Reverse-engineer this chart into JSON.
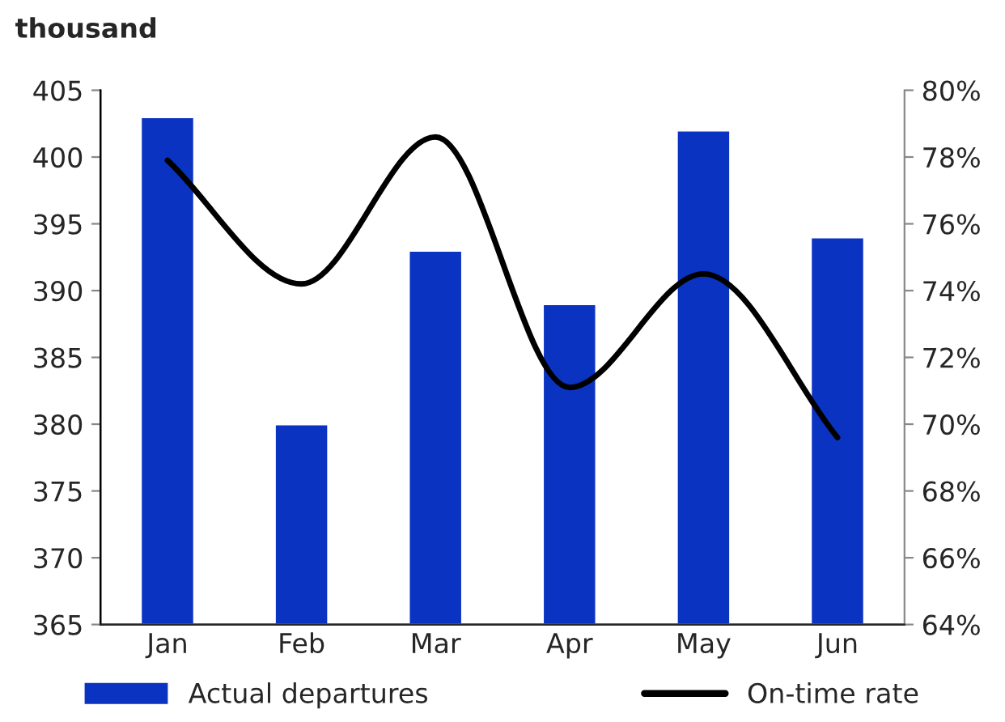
{
  "chart_data": {
    "type": "bar",
    "ylabel": "thousand",
    "categories": [
      "Jan",
      "Feb",
      "Mar",
      "Apr",
      "May",
      "Jun"
    ],
    "series": [
      {
        "name": "Actual departures",
        "color": "#0a33c2",
        "values": [
          403,
          380,
          393,
          389,
          402,
          394
        ]
      },
      {
        "name": "On-time rate",
        "type": "line",
        "axis": "y2",
        "color": "#000000",
        "values": [
          77.9,
          74.2,
          78.6,
          71.1,
          74.5,
          69.6
        ]
      }
    ],
    "ylim": [
      365,
      405
    ],
    "yticks": [
      365,
      370,
      375,
      380,
      385,
      390,
      395,
      400,
      405
    ],
    "y2lim": [
      64,
      80
    ],
    "y2ticks": [
      {
        "value": 64,
        "label": "64%"
      },
      {
        "value": 66,
        "label": "66%"
      },
      {
        "value": 68,
        "label": "68%"
      },
      {
        "value": 70,
        "label": "70%"
      },
      {
        "value": 72,
        "label": "72%"
      },
      {
        "value": 74,
        "label": "74%"
      },
      {
        "value": 76,
        "label": "76%"
      },
      {
        "value": 78,
        "label": "78%"
      },
      {
        "value": 80,
        "label": "80%"
      }
    ],
    "grid": false,
    "legend": "bottom",
    "marker": "none",
    "line_style": "solid"
  }
}
